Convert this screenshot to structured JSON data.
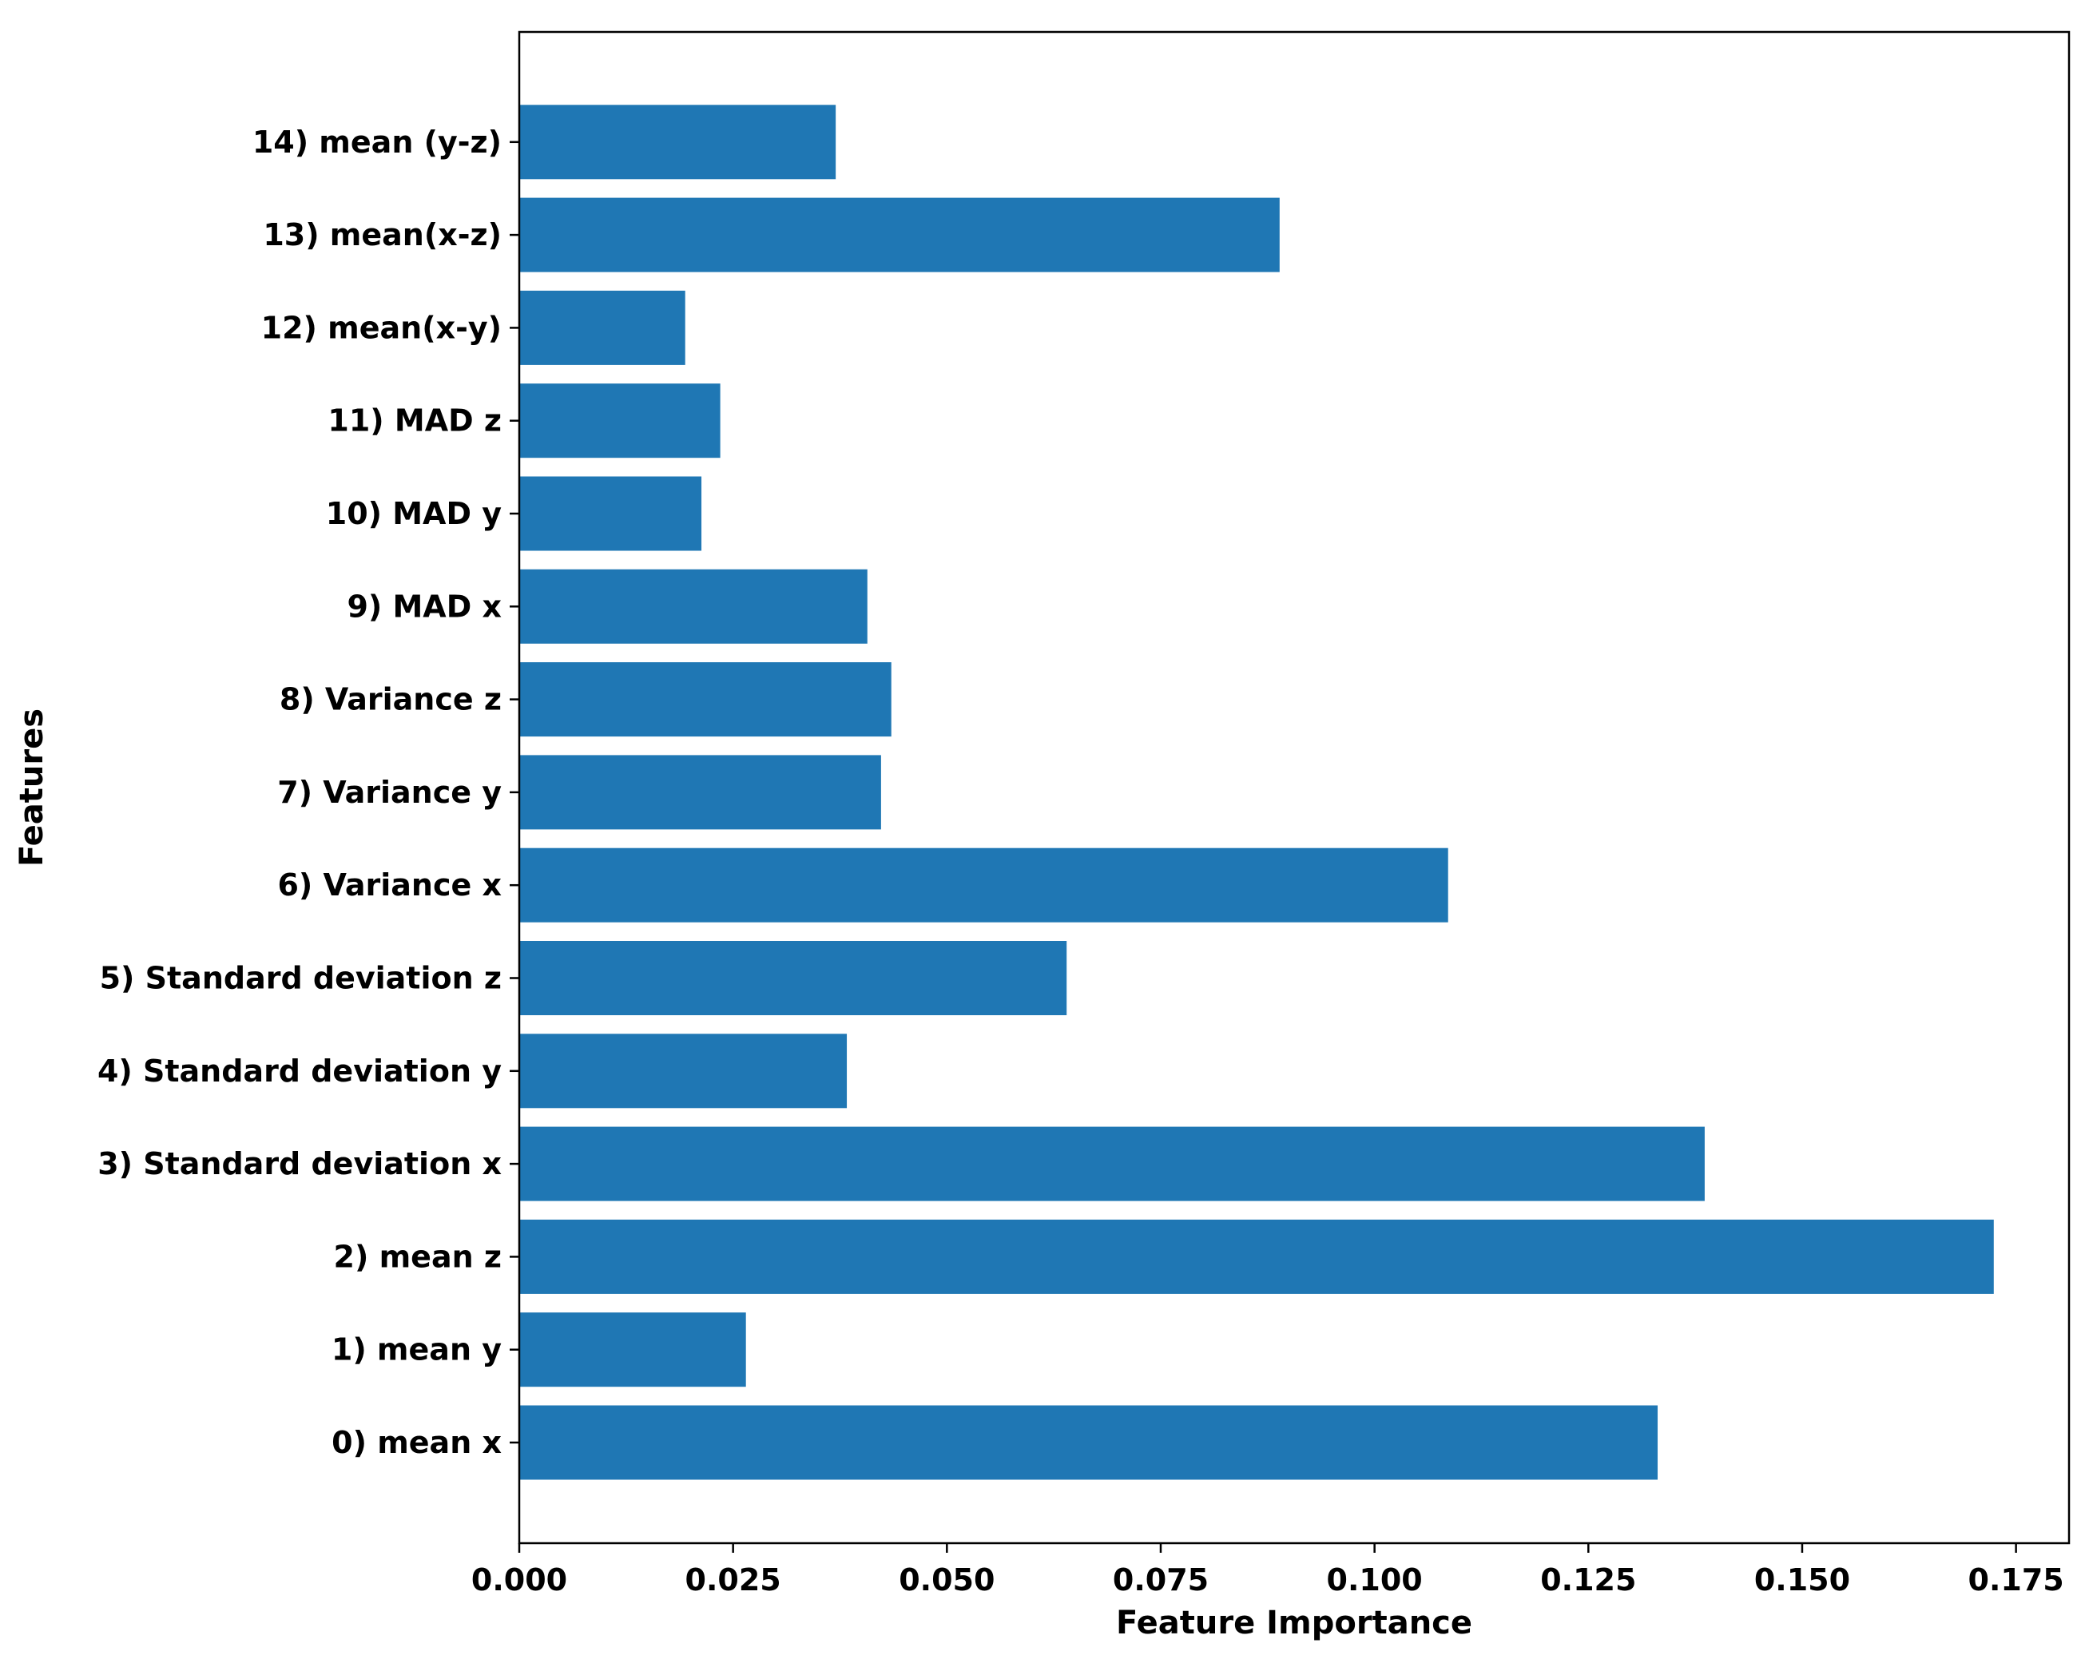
{
  "chart_data": {
    "type": "bar",
    "orientation": "horizontal",
    "title": "",
    "xlabel": "Feature Importance",
    "ylabel": "Features",
    "xlim": [
      0,
      0.1812
    ],
    "xticks": [
      "0.000",
      "0.025",
      "0.050",
      "0.075",
      "0.100",
      "0.125",
      "0.150",
      "0.175"
    ],
    "xtick_values": [
      0,
      0.025,
      0.05,
      0.075,
      0.1,
      0.125,
      0.15,
      0.175
    ],
    "grid": false,
    "bar_color": "#1f77b4",
    "categories": [
      "0) mean x",
      "1) mean y",
      "2) mean z",
      "3) Standard deviation x",
      "4) Standard deviation y",
      "5) Standard deviation z",
      "6) Variance x",
      "7) Variance y",
      "8) Variance z",
      "9) MAD x",
      "10) MAD y",
      "11) MAD z",
      "12) mean(x-y)",
      "13) mean(x-z)",
      "14) mean (y-z)"
    ],
    "values": [
      0.1331,
      0.0265,
      0.1724,
      0.1386,
      0.0383,
      0.064,
      0.1086,
      0.0423,
      0.0435,
      0.0407,
      0.0213,
      0.0235,
      0.0194,
      0.0889,
      0.037
    ]
  }
}
